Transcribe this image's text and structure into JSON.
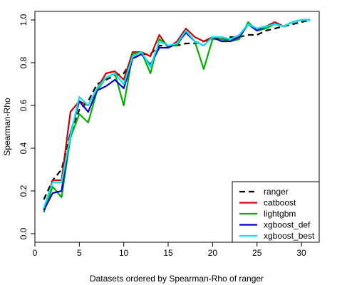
{
  "chart_data": {
    "type": "line",
    "title": "",
    "xlabel": "Datasets ordered by Spearman-Rho of ranger",
    "ylabel": "Spearman-Rho",
    "xlim": [
      0,
      32
    ],
    "ylim": [
      -0.04,
      1.04
    ],
    "x_ticks": [
      0,
      5,
      10,
      15,
      20,
      25,
      30
    ],
    "y_ticks": [
      0.0,
      0.2,
      0.4,
      0.6,
      0.8,
      1.0
    ],
    "y_tick_labels": [
      "0.0",
      "0.2",
      "0.4",
      "0.6",
      "0.8",
      "1.0"
    ],
    "grid": false,
    "legend_position": "bottom-right",
    "x": [
      1,
      2,
      3,
      4,
      5,
      6,
      7,
      8,
      9,
      10,
      11,
      12,
      13,
      14,
      15,
      16,
      17,
      18,
      19,
      20,
      21,
      22,
      23,
      24,
      25,
      26,
      27,
      28,
      29,
      30,
      31
    ],
    "series": [
      {
        "name": "ranger",
        "color": "#000000",
        "dash": "dashed",
        "values": [
          0.16,
          0.25,
          0.3,
          0.47,
          0.58,
          0.62,
          0.7,
          0.72,
          0.74,
          0.75,
          0.82,
          0.84,
          0.84,
          0.88,
          0.88,
          0.88,
          0.89,
          0.89,
          0.9,
          0.91,
          0.91,
          0.92,
          0.92,
          0.93,
          0.93,
          0.95,
          0.96,
          0.97,
          0.98,
          0.99,
          1.0
        ]
      },
      {
        "name": "catboost",
        "color": "#d00000",
        "dash": "solid",
        "values": [
          0.11,
          0.25,
          0.25,
          0.57,
          0.62,
          0.6,
          0.68,
          0.75,
          0.76,
          0.72,
          0.85,
          0.85,
          0.83,
          0.93,
          0.87,
          0.9,
          0.96,
          0.92,
          0.9,
          0.92,
          0.91,
          0.91,
          0.92,
          0.98,
          0.96,
          0.97,
          0.99,
          0.97,
          0.99,
          1.0,
          1.0
        ]
      },
      {
        "name": "lightgbm",
        "color": "#00b000",
        "dash": "solid",
        "values": [
          0.1,
          0.22,
          0.17,
          0.45,
          0.56,
          0.52,
          0.67,
          0.73,
          0.75,
          0.6,
          0.84,
          0.85,
          0.75,
          0.91,
          0.88,
          0.88,
          0.95,
          0.9,
          0.77,
          0.91,
          0.91,
          0.9,
          0.91,
          0.99,
          0.95,
          0.96,
          0.98,
          0.97,
          0.99,
          1.0,
          1.0
        ]
      },
      {
        "name": "xgboost_def",
        "color": "#0000cc",
        "dash": "solid",
        "values": [
          0.11,
          0.19,
          0.2,
          0.47,
          0.62,
          0.57,
          0.67,
          0.69,
          0.72,
          0.68,
          0.82,
          0.84,
          0.79,
          0.87,
          0.87,
          0.89,
          0.94,
          0.9,
          0.88,
          0.92,
          0.9,
          0.9,
          0.92,
          0.98,
          0.95,
          0.97,
          0.98,
          0.97,
          0.99,
          1.0,
          1.0
        ]
      },
      {
        "name": "xgboost_best",
        "color": "#00e8f0",
        "dash": "solid",
        "values": [
          0.12,
          0.24,
          0.24,
          0.46,
          0.64,
          0.6,
          0.68,
          0.73,
          0.75,
          0.7,
          0.83,
          0.85,
          0.78,
          0.9,
          0.88,
          0.89,
          0.95,
          0.9,
          0.88,
          0.92,
          0.92,
          0.91,
          0.93,
          0.98,
          0.96,
          0.97,
          0.98,
          0.97,
          0.99,
          1.0,
          1.0
        ]
      }
    ]
  }
}
